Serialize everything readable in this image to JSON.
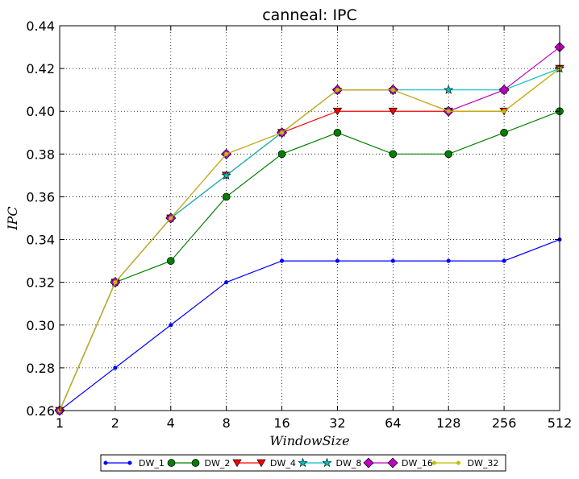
{
  "chart_data": {
    "type": "line",
    "title": "canneal: IPC",
    "xlabel": "WindowSize",
    "ylabel": "IPC",
    "categories": [
      "1",
      "2",
      "4",
      "8",
      "16",
      "32",
      "64",
      "128",
      "256",
      "512"
    ],
    "ylim": [
      0.26,
      0.44
    ],
    "yticks": [
      "0.26",
      "0.28",
      "0.30",
      "0.32",
      "0.34",
      "0.36",
      "0.38",
      "0.40",
      "0.42",
      "0.44"
    ],
    "grid": true,
    "legend_position": "bottom-center",
    "series": [
      {
        "name": "DW_1",
        "color": "#0000ff",
        "marker": "dot",
        "values": [
          0.26,
          0.28,
          0.3,
          0.32,
          0.33,
          0.33,
          0.33,
          0.33,
          0.33,
          0.34
        ]
      },
      {
        "name": "DW_2",
        "color": "#008000",
        "marker": "circle",
        "values": [
          0.26,
          0.32,
          0.33,
          0.36,
          0.38,
          0.39,
          0.38,
          0.38,
          0.39,
          0.4
        ]
      },
      {
        "name": "DW_4",
        "color": "#ff0000",
        "marker": "triangle",
        "values": [
          0.26,
          0.32,
          0.35,
          0.37,
          0.39,
          0.4,
          0.4,
          0.4,
          0.4,
          0.42
        ]
      },
      {
        "name": "DW_8",
        "color": "#00bfbf",
        "marker": "star",
        "values": [
          0.26,
          0.32,
          0.35,
          0.37,
          0.39,
          0.41,
          0.41,
          0.41,
          0.41,
          0.42
        ]
      },
      {
        "name": "DW_16",
        "color": "#bf00bf",
        "marker": "diamond",
        "values": [
          0.26,
          0.32,
          0.35,
          0.38,
          0.39,
          0.41,
          0.41,
          0.4,
          0.41,
          0.43
        ]
      },
      {
        "name": "DW_32",
        "color": "#bfbf00",
        "marker": "dot",
        "values": [
          0.26,
          0.32,
          0.35,
          0.38,
          0.39,
          0.41,
          0.41,
          0.4,
          0.4,
          0.42
        ]
      }
    ]
  }
}
